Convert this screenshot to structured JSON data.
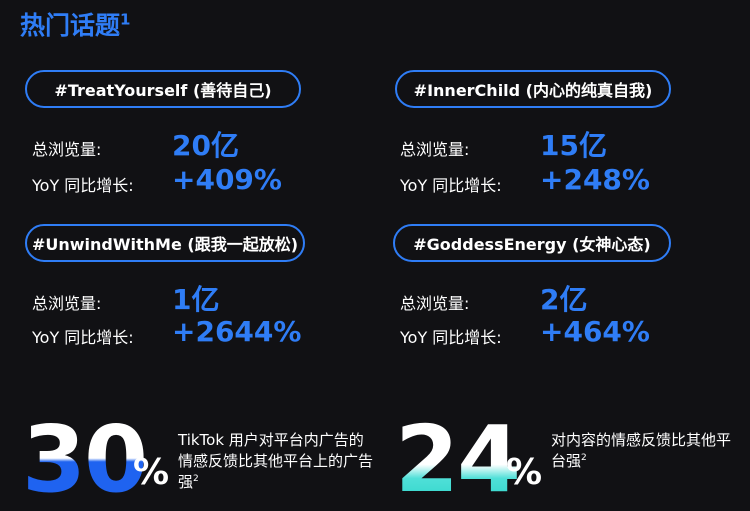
{
  "title": "热门话题",
  "title_sup": "1",
  "labels": {
    "views": "总浏览量:",
    "yoy": "YoY 同比增长:"
  },
  "topics": [
    {
      "tag": "#TreatYourself (善待自己)",
      "views": "20亿",
      "growth": "+409%"
    },
    {
      "tag": "#InnerChild (内心的纯真自我)",
      "views": "15亿",
      "growth": "+248%"
    },
    {
      "tag": "#UnwindWithMe (跟我一起放松)",
      "views": "1亿",
      "growth": "+2644%"
    },
    {
      "tag": "#GoddessEnergy (女神心态)",
      "views": "2亿",
      "growth": "+464%"
    }
  ],
  "stats": [
    {
      "number": "30",
      "unit": "%",
      "text": "TikTok 用户对平台内广告的情感反馈比其他平台上的广告强",
      "sup": "2"
    },
    {
      "number": "24",
      "unit": "%",
      "text": "对内容的情感反馈比其他平台强",
      "sup": "2"
    }
  ],
  "colors": {
    "accent": "#2f7df6",
    "background": "#111114",
    "teal": "#2dd4c8"
  }
}
